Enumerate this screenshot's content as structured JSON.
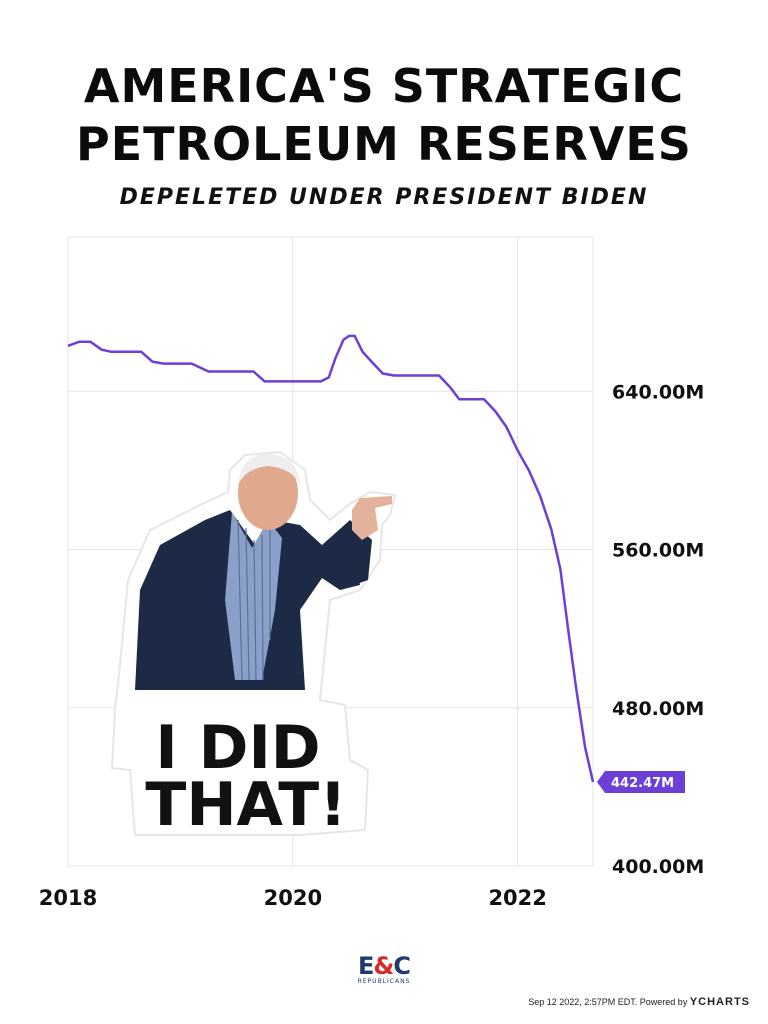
{
  "header": {
    "title_line1": "AMERICA'S STRATEGIC",
    "title_line2": "PETROLEUM RESERVES",
    "subtitle": "DEPELETED UNDER PRESIDENT BIDEN"
  },
  "chart_data": {
    "type": "line",
    "x_tick_labels": [
      "2018",
      "2020",
      "2022"
    ],
    "y_tick_labels": [
      "640.00M",
      "560.00M",
      "480.00M",
      "400.00M"
    ],
    "y_ticks": [
      640,
      560,
      480,
      400
    ],
    "ylim": [
      400,
      718
    ],
    "xlim": [
      2018.0,
      2022.67
    ],
    "grid": true,
    "line_color": "#6c3fd6",
    "last_value_label": "442.47M",
    "series": [
      {
        "x": [
          2018.0,
          2018.1,
          2018.2,
          2018.3,
          2018.38,
          2018.5,
          2018.65,
          2018.75,
          2018.85,
          2018.95,
          2019.1,
          2019.25,
          2019.4,
          2019.5,
          2019.65,
          2019.75,
          2019.85,
          2019.95,
          2020.1,
          2020.25,
          2020.32,
          2020.38,
          2020.45,
          2020.5,
          2020.55,
          2020.62,
          2020.7,
          2020.8,
          2020.9,
          2021.0,
          2021.12,
          2021.2,
          2021.3,
          2021.4,
          2021.48,
          2021.6,
          2021.7,
          2021.8,
          2021.9,
          2022.0,
          2022.1,
          2022.2,
          2022.3,
          2022.38,
          2022.45,
          2022.52,
          2022.6,
          2022.67
        ],
        "y": [
          663,
          665,
          665,
          661,
          660,
          660,
          660,
          655,
          654,
          654,
          654,
          650,
          650,
          650,
          650,
          645,
          645,
          645,
          645,
          645,
          647,
          657,
          666,
          668,
          668,
          660,
          655,
          649,
          648,
          648,
          648,
          648,
          648,
          642,
          636,
          636,
          636,
          630,
          622,
          610,
          600,
          587,
          570,
          550,
          519,
          490,
          460,
          442.47
        ]
      }
    ]
  },
  "sticker": {
    "line1": "I DID",
    "line2": "THAT!"
  },
  "logo": {
    "main_e": "E",
    "main_amp": "&",
    "main_c": "C",
    "sub": "REPUBLICANS"
  },
  "footer": {
    "text": "Sep 12 2022, 2:57PM EDT. Powered by ",
    "brand": "YCHARTS"
  }
}
